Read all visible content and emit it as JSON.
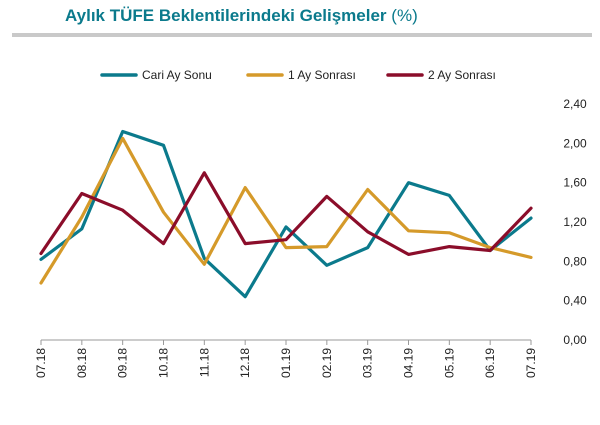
{
  "header": {
    "title": "Aylık TÜFE Beklentilerindeki Gelişmeler",
    "unit": "(%)"
  },
  "chart_data": {
    "type": "line",
    "title": "Aylık TÜFE Beklentilerindeki Gelişmeler (%)",
    "xlabel": "",
    "ylabel": "",
    "categories": [
      "07.18",
      "08.18",
      "09.18",
      "10.18",
      "11.18",
      "12.18",
      "01.19",
      "02.19",
      "03.19",
      "04.19",
      "05.19",
      "06.19",
      "07.19"
    ],
    "ylim": [
      0,
      2.4
    ],
    "yticks": [
      "0,00",
      "0,40",
      "0,80",
      "1,20",
      "1,60",
      "2,00",
      "2,40"
    ],
    "y_axis_side": "right",
    "grid": false,
    "legend_position": "top",
    "series": [
      {
        "name": "Cari Ay Sonu",
        "color": "#0b7a8c",
        "values": [
          0.82,
          1.13,
          2.12,
          1.98,
          0.83,
          0.44,
          1.15,
          0.76,
          0.94,
          1.6,
          1.47,
          0.91,
          1.24
        ]
      },
      {
        "name": "1 Ay Sonrası",
        "color": "#d59a2a",
        "values": [
          0.58,
          1.25,
          2.05,
          1.3,
          0.77,
          1.55,
          0.94,
          0.95,
          1.53,
          1.11,
          1.09,
          0.94,
          0.84
        ]
      },
      {
        "name": "2 Ay Sonrası",
        "color": "#8b0d2a",
        "values": [
          0.88,
          1.49,
          1.32,
          0.98,
          1.7,
          0.98,
          1.02,
          1.46,
          1.1,
          0.87,
          0.95,
          0.91,
          1.34
        ]
      }
    ]
  }
}
